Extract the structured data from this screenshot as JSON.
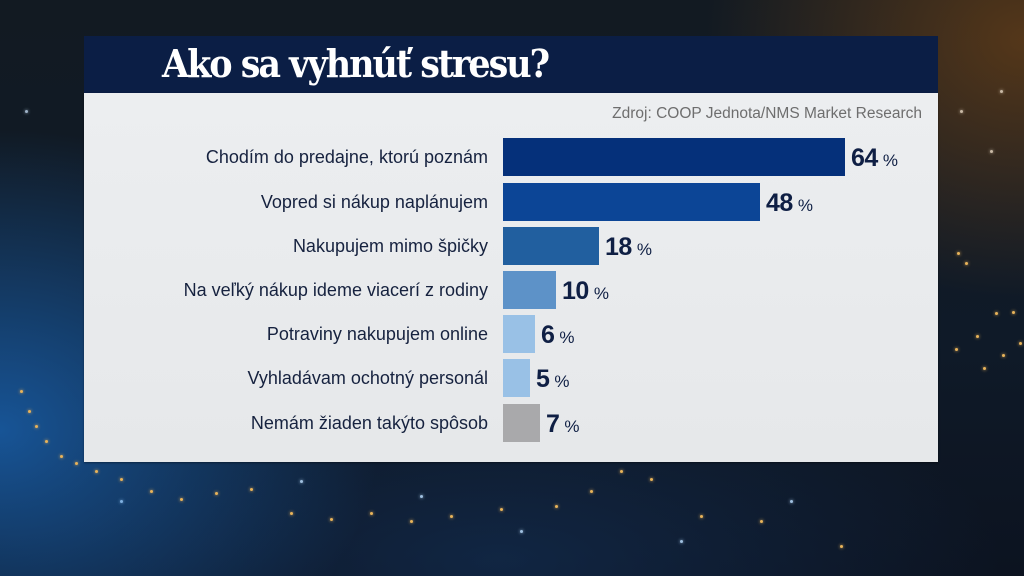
{
  "header": {
    "title": "Ako sa vyhnúť stresu?"
  },
  "source": "Zdroj: COOP Jednota/NMS Market Research",
  "colors": {
    "title_bar": "#0b1e45",
    "panel": "#eceef0",
    "text": "#16223f",
    "source_text": "#6e6e6e"
  },
  "rows": [
    {
      "label": "Chodím do predajne, ktorú poznám",
      "value": "64",
      "unit": "%",
      "color": "#05307a"
    },
    {
      "label": "Vopred si nákup naplánujem",
      "value": "48",
      "unit": "%",
      "color": "#0c4596"
    },
    {
      "label": "Nakupujem mimo špičky",
      "value": "18",
      "unit": "%",
      "color": "#215f9f"
    },
    {
      "label": "Na veľký nákup ideme viacerí z rodiny",
      "value": "10",
      "unit": "%",
      "color": "#5d92c8"
    },
    {
      "label": "Potraviny nakupujem online",
      "value": "6",
      "unit": "%",
      "color": "#99c1e6"
    },
    {
      "label": "Vyhladávam ochotný personál",
      "value": "5",
      "unit": "%",
      "color": "#99c1e6"
    },
    {
      "label": "Nemám žiaden takýto spôsob",
      "value": "7",
      "unit": "%",
      "color": "#a9a9ab"
    }
  ],
  "chart_data": {
    "type": "bar",
    "orientation": "horizontal",
    "title": "Ako sa vyhnúť stresu?",
    "subtitle": "Zdroj: COOP Jednota/NMS Market Research",
    "categories": [
      "Chodím do predajne, ktorú poznám",
      "Vopred si nákup naplánujem",
      "Nakupujem mimo špičky",
      "Na veľký nákup ideme viacerí z rodiny",
      "Potraviny nakupujem online",
      "Vyhladávam ochotný personál",
      "Nemám žiaden takýto spôsob"
    ],
    "values": [
      64,
      48,
      18,
      10,
      6,
      5,
      7
    ],
    "unit": "%",
    "xlabel": "",
    "ylabel": "",
    "grid": false,
    "legend": null,
    "data_labels": true,
    "bar_colors": [
      "#05307a",
      "#0c4596",
      "#215f9f",
      "#5d92c8",
      "#99c1e6",
      "#99c1e6",
      "#a9a9ab"
    ]
  }
}
